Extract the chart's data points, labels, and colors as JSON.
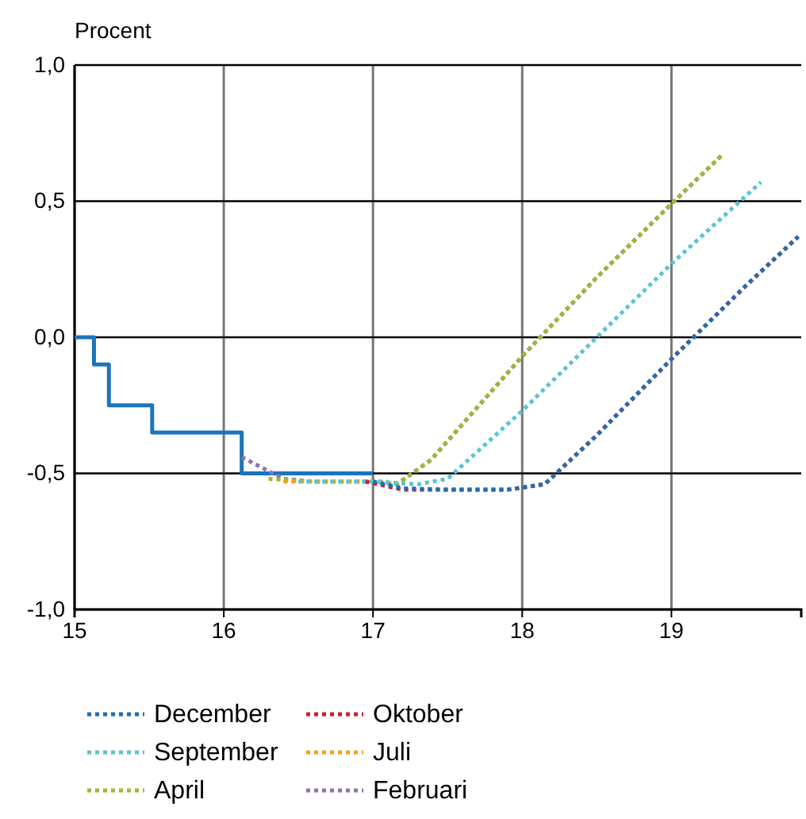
{
  "chart_data": {
    "type": "line",
    "ylabel": "Procent",
    "xlim": [
      15,
      19.87
    ],
    "xticks": [
      15,
      16,
      17,
      18,
      19
    ],
    "ylim": [
      -1,
      1
    ],
    "yticks": [
      {
        "value": -1,
        "label": "-1,0"
      },
      {
        "value": -0.5,
        "label": "-0,5"
      },
      {
        "value": 0,
        "label": "0,0"
      },
      {
        "value": 0.5,
        "label": "0,5"
      },
      {
        "value": 1,
        "label": "1,0"
      }
    ],
    "grid": true,
    "legend": "bottom",
    "marker": "none",
    "series": [
      {
        "name": "December",
        "color": "#1f6fb5",
        "line_style": "dotted",
        "x": [
          17.0,
          17.2,
          17.5,
          17.9,
          18.15,
          18.5,
          19,
          19.5,
          19.85
        ],
        "values": [
          -0.53,
          -0.555,
          -0.56,
          -0.56,
          -0.54,
          -0.36,
          -0.08,
          0.19,
          0.37
        ]
      },
      {
        "name": "Oktober",
        "color": "#c8202f",
        "line_style": "dotted",
        "x": [
          16.95,
          17.2,
          17.5,
          17.9,
          18.15,
          18.5,
          19,
          19.5,
          19.85
        ],
        "values": [
          -0.53,
          -0.56,
          -0.56,
          -0.56,
          -0.54,
          -0.36,
          -0.08,
          0.19,
          0.37
        ]
      },
      {
        "name": "September",
        "color": "#5bc5d0",
        "line_style": "dotted",
        "x": [
          16.5,
          17.0,
          17.3,
          17.5,
          18,
          18.5,
          19,
          19.6
        ],
        "values": [
          -0.53,
          -0.53,
          -0.54,
          -0.52,
          -0.27,
          0.0,
          0.27,
          0.57
        ]
      },
      {
        "name": "Juli",
        "color": "#f5a01a",
        "line_style": "dotted",
        "x": [
          16.4,
          16.8,
          17.1
        ],
        "values": [
          -0.53,
          -0.53,
          -0.53
        ]
      },
      {
        "name": "April",
        "color": "#9dbb2e",
        "line_style": "dotted",
        "x": [
          16.3,
          16.6,
          17.0,
          17.16,
          17.39,
          18,
          18.5,
          19,
          19.34
        ],
        "values": [
          -0.52,
          -0.53,
          -0.53,
          -0.54,
          -0.45,
          -0.07,
          0.22,
          0.49,
          0.67
        ]
      },
      {
        "name": "Februari",
        "color": "#8e73b4",
        "line_style": "dotted",
        "x": [
          16.12,
          16.4,
          16.6,
          17.0,
          17.16,
          17.39,
          18,
          18.5,
          19,
          19.34
        ],
        "values": [
          -0.44,
          -0.52,
          -0.53,
          -0.53,
          -0.54,
          -0.45,
          -0.07,
          0.22,
          0.49,
          0.67
        ]
      },
      {
        "type": "step",
        "color": "#1a75bc",
        "line_style": "solid",
        "x": [
          15,
          15.13,
          15.23,
          15.52,
          16.12,
          17.0
        ],
        "values": [
          0,
          -0.1,
          -0.25,
          -0.35,
          -0.5,
          -0.5
        ]
      }
    ]
  }
}
